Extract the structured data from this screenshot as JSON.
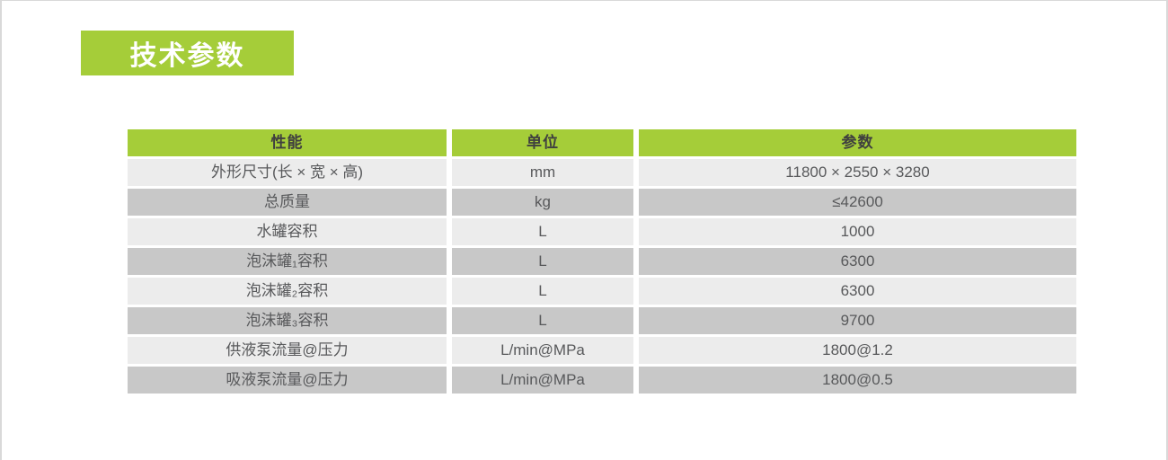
{
  "section": {
    "title": "技术参数"
  },
  "table": {
    "headers": [
      "性能",
      "单位",
      "参数"
    ],
    "rows": [
      {
        "name": "外形尺寸(长 × 宽 × 高)",
        "unit": "mm",
        "value": "11800 × 2550 × 3280"
      },
      {
        "name": "总质量",
        "unit": "kg",
        "value": "≤42600"
      },
      {
        "name": "水罐容积",
        "unit": "L",
        "value": "1000"
      },
      {
        "name": "泡沫罐₁容积",
        "unit": "L",
        "value": "6300"
      },
      {
        "name": "泡沫罐₂容积",
        "unit": "L",
        "value": "6300"
      },
      {
        "name": "泡沫罐₃容积",
        "unit": "L",
        "value": "9700"
      },
      {
        "name": "供液泵流量@压力",
        "unit": "L/min@MPa",
        "value": "1800@1.2"
      },
      {
        "name": "吸液泵流量@压力",
        "unit": "L/min@MPa",
        "value": "1800@0.5"
      }
    ]
  },
  "colors": {
    "accent_green": "#a5cd39",
    "row_light": "#ececec",
    "row_dark": "#c8c8c8",
    "header_text": "#3f3f3f",
    "body_text": "#58595b",
    "page_border": "#d9d9d9"
  }
}
